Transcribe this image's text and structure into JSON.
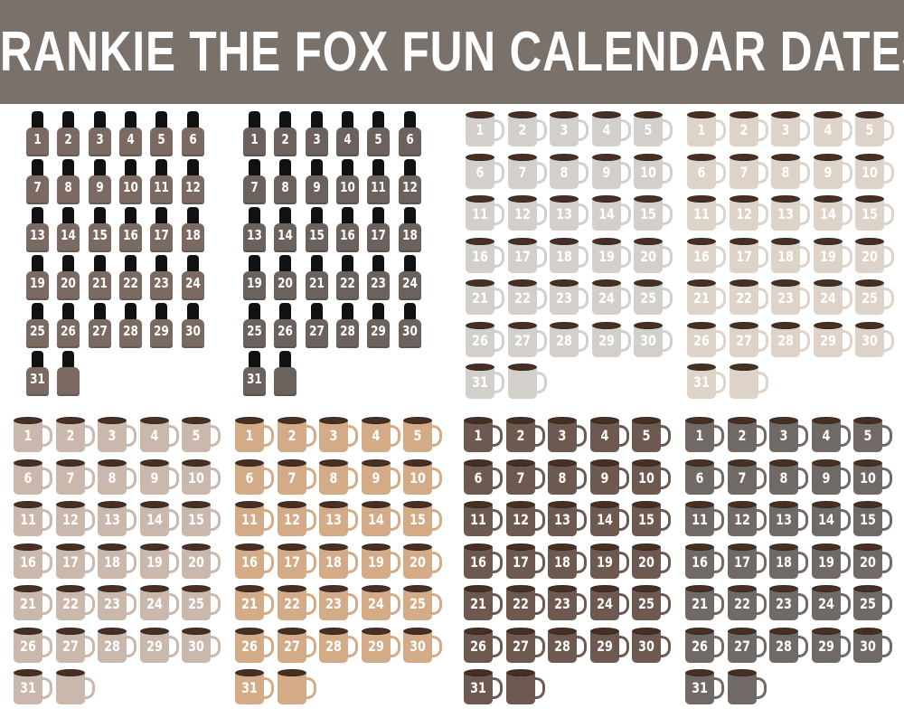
{
  "header": {
    "title": "FRANKIE THE FOX FUN CALENDAR DATES"
  },
  "dates": [
    "1",
    "2",
    "3",
    "4",
    "5",
    "6",
    "7",
    "8",
    "9",
    "10",
    "11",
    "12",
    "13",
    "14",
    "15",
    "16",
    "17",
    "18",
    "19",
    "20",
    "21",
    "22",
    "23",
    "24",
    "25",
    "26",
    "27",
    "28",
    "29",
    "30",
    "31"
  ],
  "groups": [
    {
      "type": "nail-polish",
      "color": "#7a6a62"
    },
    {
      "type": "nail-polish",
      "color": "#6b625e"
    },
    {
      "type": "mug",
      "color": "#d3d0cc"
    },
    {
      "type": "mug",
      "color": "#ddd3c8"
    },
    {
      "type": "mug",
      "color": "#c9b8ab"
    },
    {
      "type": "mug",
      "color": "#d4ab87"
    },
    {
      "type": "mug",
      "color": "#6e5950"
    },
    {
      "type": "mug",
      "color": "#716966"
    }
  ]
}
